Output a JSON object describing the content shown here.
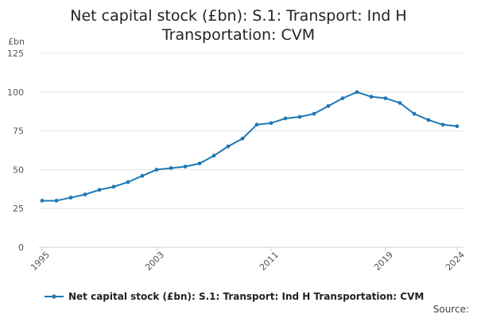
{
  "chart_data": {
    "type": "line",
    "title_lines": [
      "Net capital stock (£bn): S.1: Transport: Ind H",
      "Transportation: CVM"
    ],
    "unit_label": "£bn",
    "xlabel": "",
    "ylabel": "",
    "ylim": [
      0,
      125
    ],
    "yticks": [
      0,
      25,
      50,
      75,
      100,
      125
    ],
    "xlim": [
      1995,
      2024
    ],
    "xticks": [
      1995,
      2003,
      2011,
      2019,
      2024
    ],
    "grid": "horizontal",
    "legend_position": "bottom",
    "series": [
      {
        "name": "Net capital stock (£bn): S.1: Transport: Ind H Transportation: CVM",
        "color": "#1f78b4",
        "x": [
          1995,
          1996,
          1997,
          1998,
          1999,
          2000,
          2001,
          2002,
          2003,
          2004,
          2005,
          2006,
          2007,
          2008,
          2009,
          2010,
          2011,
          2012,
          2013,
          2014,
          2015,
          2016,
          2017,
          2018,
          2019,
          2020,
          2021,
          2022,
          2023,
          2024
        ],
        "values": [
          30,
          30,
          32,
          34,
          37,
          39,
          42,
          46,
          50,
          51,
          52,
          54,
          59,
          65,
          70,
          79,
          80,
          83,
          84,
          86,
          91,
          96,
          100,
          97,
          96,
          93,
          86,
          82,
          79,
          78
        ]
      }
    ],
    "source_label": "Source:"
  }
}
